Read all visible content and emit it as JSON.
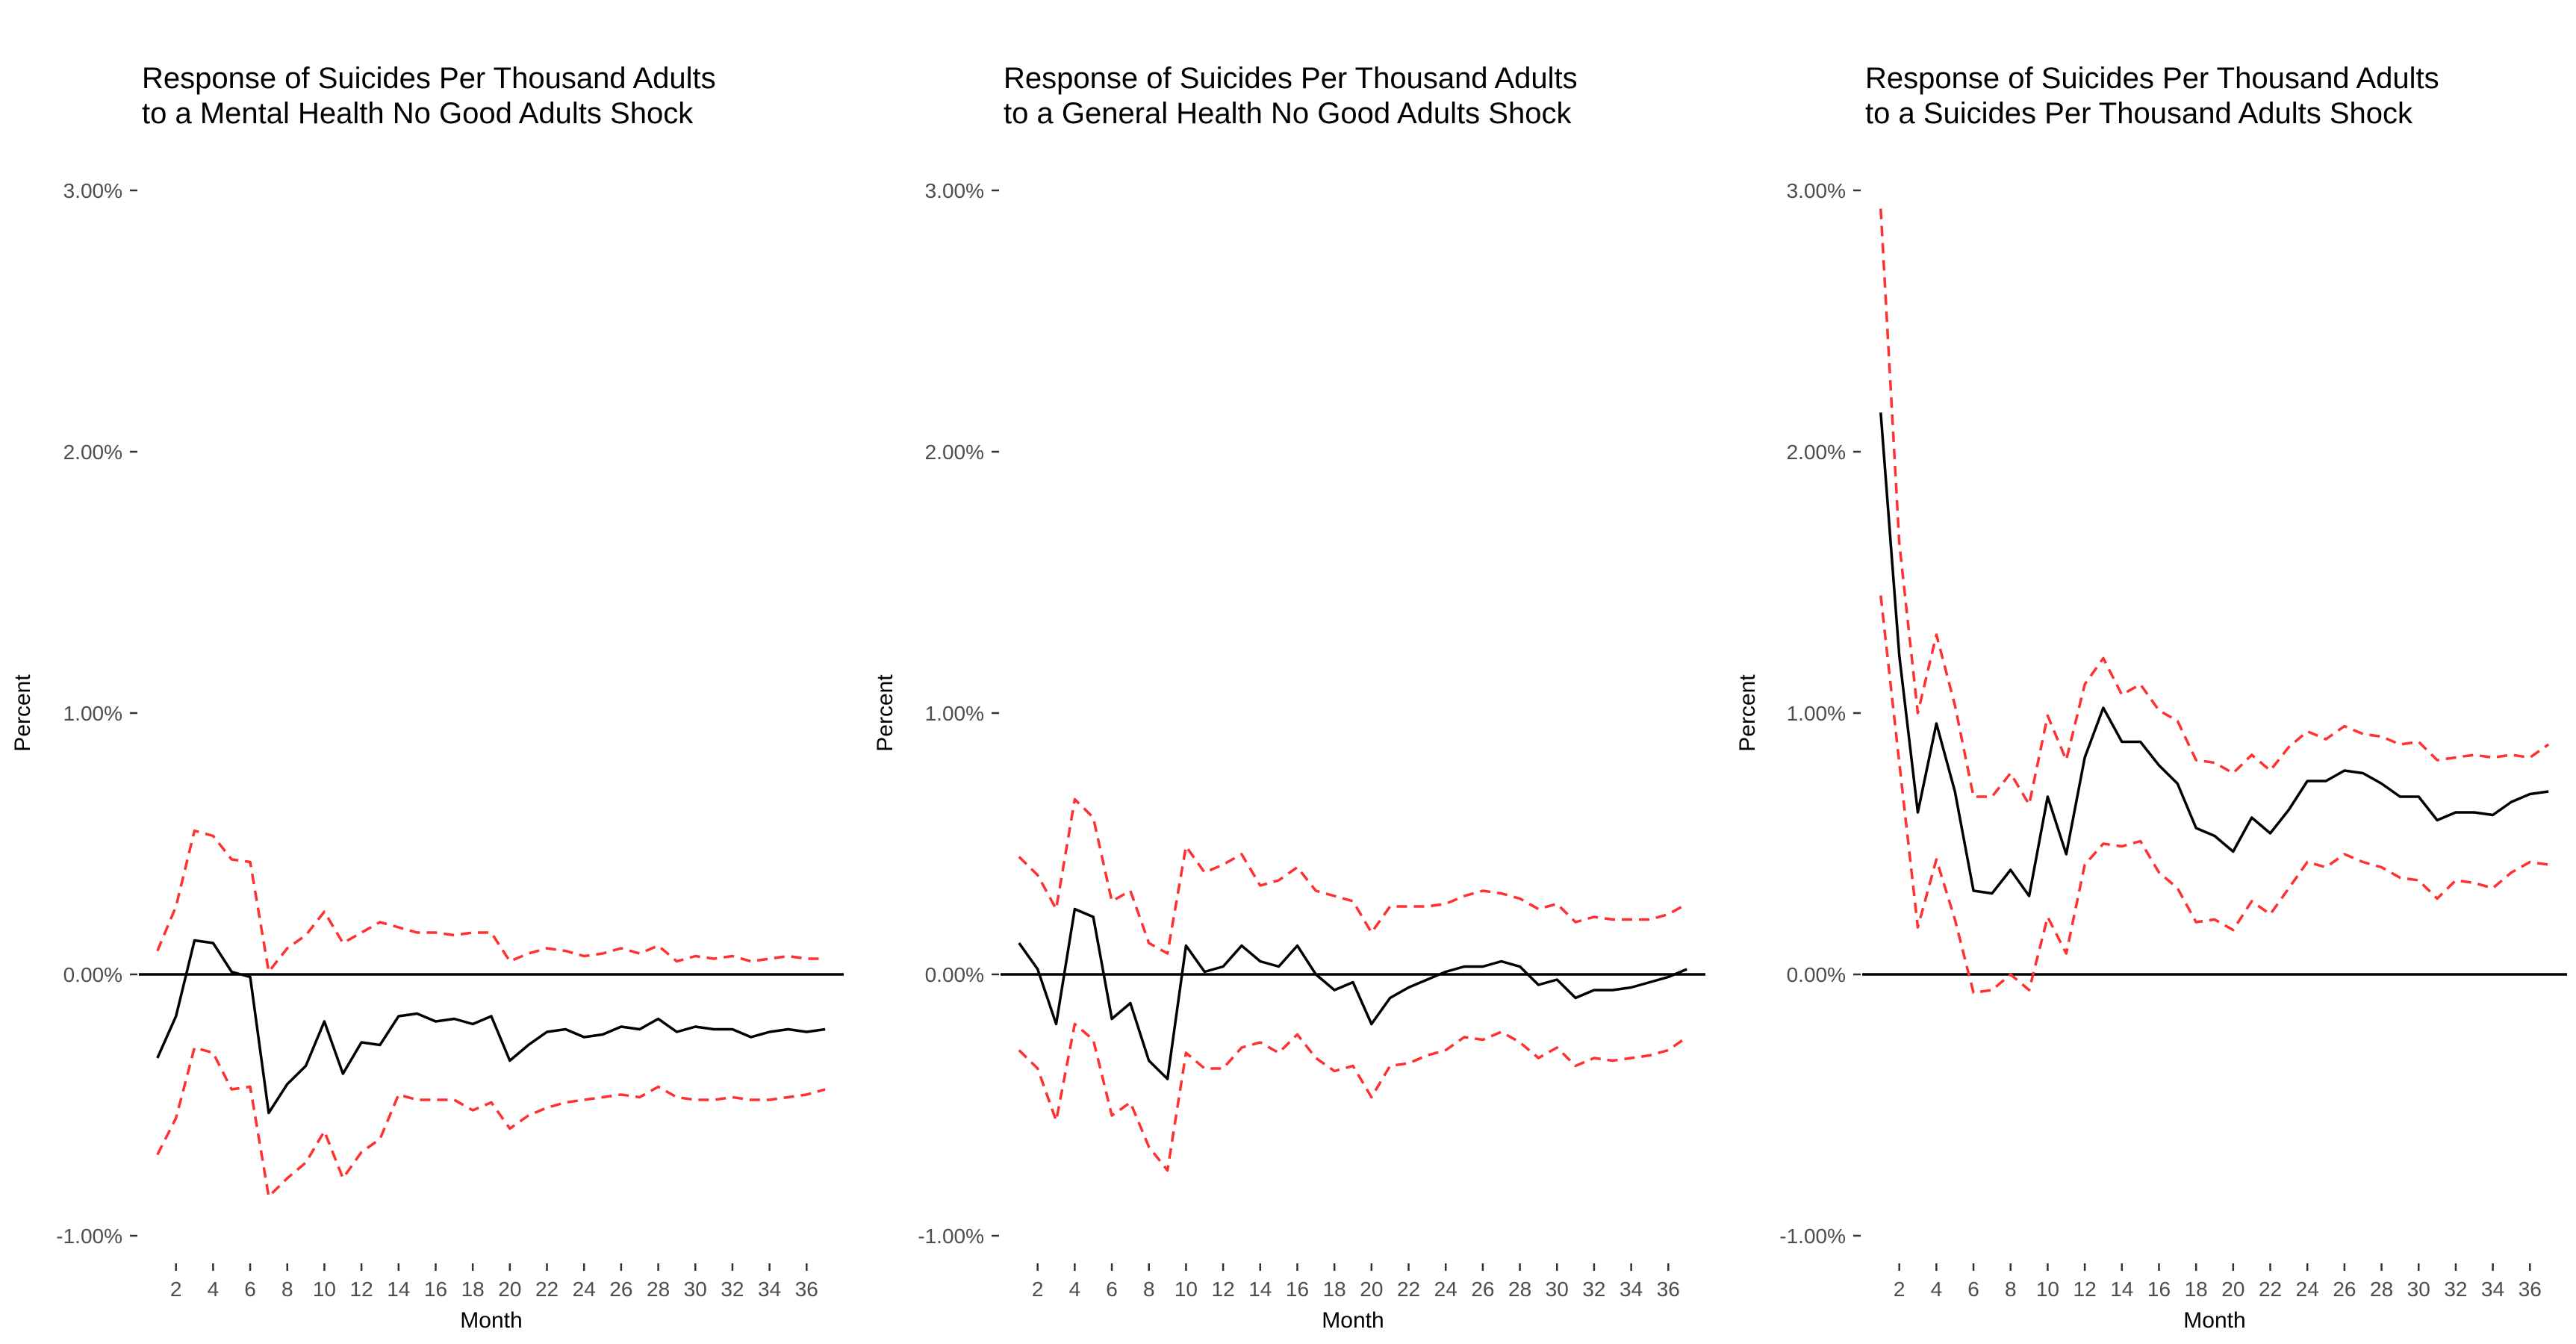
{
  "figure": {
    "accent_colors": {
      "estimate": "#000000",
      "bands": "#ff3030",
      "zero_line": "#000000",
      "tick_text": "#4d4d4d"
    }
  },
  "chart_data": [
    {
      "type": "line",
      "title": "Response of Suicides Per Thousand Adults\nto a Mental Health No Good Adults Shock",
      "xlabel": "Month",
      "ylabel": "Percent",
      "ylim": [
        -0.011,
        0.031
      ],
      "xlim": [
        0,
        38
      ],
      "yticks": [
        -0.01,
        0,
        0.01,
        0.02,
        0.03
      ],
      "ytick_labels": [
        "-1.00%",
        "0.00%",
        "1.00%",
        "2.00%",
        "3.00%"
      ],
      "xticks": [
        2,
        4,
        6,
        8,
        10,
        12,
        14,
        16,
        18,
        20,
        22,
        24,
        26,
        28,
        30,
        32,
        34,
        36
      ],
      "xtick_labels": [
        "2",
        "4",
        "6",
        "8",
        "10",
        "12",
        "14",
        "16",
        "18",
        "20",
        "22",
        "24",
        "26",
        "28",
        "30",
        "32",
        "34",
        "36"
      ],
      "grid": false,
      "x": [
        1,
        2,
        3,
        4,
        5,
        6,
        7,
        8,
        9,
        10,
        11,
        12,
        13,
        14,
        15,
        16,
        17,
        18,
        19,
        20,
        21,
        22,
        23,
        24,
        25,
        26,
        27,
        28,
        29,
        30,
        31,
        32,
        33,
        34,
        35,
        36,
        37
      ],
      "series": [
        {
          "role": "estimate",
          "style": "solid",
          "color": "#000000",
          "values": [
            -0.0032,
            -0.0016,
            0.0013,
            0.0012,
            0.0001,
            -0.0001,
            -0.0053,
            -0.0042,
            -0.0035,
            -0.0018,
            -0.0038,
            -0.0026,
            -0.0027,
            -0.0016,
            -0.0015,
            -0.0018,
            -0.0017,
            -0.0019,
            -0.0016,
            -0.0033,
            -0.0027,
            -0.0022,
            -0.0021,
            -0.0024,
            -0.0023,
            -0.002,
            -0.0021,
            -0.0017,
            -0.0022,
            -0.002,
            -0.0021,
            -0.0021,
            -0.0024,
            -0.0022,
            -0.0021,
            -0.0022,
            -0.0021
          ]
        },
        {
          "role": "upper_band",
          "style": "dashed",
          "color": "#ff3030",
          "values": [
            0.0009,
            0.0026,
            0.0055,
            0.0053,
            0.0044,
            0.0043,
            0.0001,
            0.001,
            0.0015,
            0.0024,
            0.0012,
            0.0016,
            0.002,
            0.0018,
            0.0016,
            0.0016,
            0.0015,
            0.0016,
            0.0016,
            0.0005,
            0.0008,
            0.001,
            0.0009,
            0.0007,
            0.0008,
            0.001,
            0.0008,
            0.0011,
            0.0005,
            0.0007,
            0.0006,
            0.0007,
            0.0005,
            0.0006,
            0.0007,
            0.0006,
            0.0006
          ]
        },
        {
          "role": "lower_band",
          "style": "dashed",
          "color": "#ff3030",
          "values": [
            -0.0069,
            -0.0055,
            -0.0028,
            -0.003,
            -0.0044,
            -0.0043,
            -0.0085,
            -0.0078,
            -0.0072,
            -0.006,
            -0.0078,
            -0.0068,
            -0.0063,
            -0.0046,
            -0.0048,
            -0.0048,
            -0.0048,
            -0.0052,
            -0.0049,
            -0.0059,
            -0.0054,
            -0.0051,
            -0.0049,
            -0.0048,
            -0.0047,
            -0.0046,
            -0.0047,
            -0.0043,
            -0.0047,
            -0.0048,
            -0.0048,
            -0.0047,
            -0.0048,
            -0.0048,
            -0.0047,
            -0.0046,
            -0.0044
          ]
        }
      ]
    },
    {
      "type": "line",
      "title": "Response of Suicides Per Thousand Adults\nto a General Health No Good Adults Shock",
      "xlabel": "Month",
      "ylabel": "Percent",
      "ylim": [
        -0.011,
        0.031
      ],
      "xlim": [
        0,
        38
      ],
      "yticks": [
        -0.01,
        0,
        0.01,
        0.02,
        0.03
      ],
      "ytick_labels": [
        "-1.00%",
        "0.00%",
        "1.00%",
        "2.00%",
        "3.00%"
      ],
      "xticks": [
        2,
        4,
        6,
        8,
        10,
        12,
        14,
        16,
        18,
        20,
        22,
        24,
        26,
        28,
        30,
        32,
        34,
        36
      ],
      "xtick_labels": [
        "2",
        "4",
        "6",
        "8",
        "10",
        "12",
        "14",
        "16",
        "18",
        "20",
        "22",
        "24",
        "26",
        "28",
        "30",
        "32",
        "34",
        "36"
      ],
      "grid": false,
      "x": [
        1,
        2,
        3,
        4,
        5,
        6,
        7,
        8,
        9,
        10,
        11,
        12,
        13,
        14,
        15,
        16,
        17,
        18,
        19,
        20,
        21,
        22,
        23,
        24,
        25,
        26,
        27,
        28,
        29,
        30,
        31,
        32,
        33,
        34,
        35,
        36,
        37
      ],
      "series": [
        {
          "role": "estimate",
          "style": "solid",
          "color": "#000000",
          "values": [
            0.0012,
            0.0002,
            -0.0019,
            0.0025,
            0.0022,
            -0.0017,
            -0.0011,
            -0.0033,
            -0.004,
            0.0011,
            0.0001,
            0.0003,
            0.0011,
            0.0005,
            0.0003,
            0.0011,
            0.0,
            -0.0006,
            -0.0003,
            -0.0019,
            -0.0009,
            -0.0005,
            -0.0002,
            0.0001,
            0.0003,
            0.0003,
            0.0005,
            0.0003,
            -0.0004,
            -0.0002,
            -0.0009,
            -0.0006,
            -0.0006,
            -0.0005,
            -0.0003,
            -0.0001,
            0.0002
          ]
        },
        {
          "role": "upper_band",
          "style": "dashed",
          "color": "#ff3030",
          "values": [
            0.0045,
            0.0038,
            0.0025,
            0.0067,
            0.006,
            0.0028,
            0.0032,
            0.0012,
            0.0008,
            0.0049,
            0.0039,
            0.0042,
            0.0046,
            0.0034,
            0.0036,
            0.0041,
            0.0032,
            0.003,
            0.0028,
            0.0016,
            0.0026,
            0.0026,
            0.0026,
            0.0027,
            0.003,
            0.0032,
            0.0031,
            0.0029,
            0.0025,
            0.0027,
            0.002,
            0.0022,
            0.0021,
            0.0021,
            0.0021,
            0.0023,
            0.0027
          ]
        },
        {
          "role": "lower_band",
          "style": "dashed",
          "color": "#ff3030",
          "values": [
            -0.0029,
            -0.0036,
            -0.0056,
            -0.0019,
            -0.0025,
            -0.0054,
            -0.0049,
            -0.0066,
            -0.0075,
            -0.003,
            -0.0036,
            -0.0036,
            -0.0028,
            -0.0026,
            -0.003,
            -0.0023,
            -0.0032,
            -0.0037,
            -0.0035,
            -0.0047,
            -0.0035,
            -0.0034,
            -0.0031,
            -0.0029,
            -0.0024,
            -0.0025,
            -0.0022,
            -0.0026,
            -0.0032,
            -0.0028,
            -0.0035,
            -0.0032,
            -0.0033,
            -0.0032,
            -0.0031,
            -0.0029,
            -0.0024
          ]
        }
      ]
    },
    {
      "type": "line",
      "title": "Response of Suicides Per Thousand Adults\nto a Suicides Per Thousand Adults Shock",
      "xlabel": "Month",
      "ylabel": "Percent",
      "ylim": [
        -0.011,
        0.031
      ],
      "xlim": [
        0,
        38
      ],
      "yticks": [
        -0.01,
        0,
        0.01,
        0.02,
        0.03
      ],
      "ytick_labels": [
        "-1.00%",
        "0.00%",
        "1.00%",
        "2.00%",
        "3.00%"
      ],
      "xticks": [
        2,
        4,
        6,
        8,
        10,
        12,
        14,
        16,
        18,
        20,
        22,
        24,
        26,
        28,
        30,
        32,
        34,
        36
      ],
      "xtick_labels": [
        "2",
        "4",
        "6",
        "8",
        "10",
        "12",
        "14",
        "16",
        "18",
        "20",
        "22",
        "24",
        "26",
        "28",
        "30",
        "32",
        "34",
        "36"
      ],
      "grid": false,
      "x": [
        1,
        2,
        3,
        4,
        5,
        6,
        7,
        8,
        9,
        10,
        11,
        12,
        13,
        14,
        15,
        16,
        17,
        18,
        19,
        20,
        21,
        22,
        23,
        24,
        25,
        26,
        27,
        28,
        29,
        30,
        31,
        32,
        33,
        34,
        35,
        36,
        37
      ],
      "series": [
        {
          "role": "estimate",
          "style": "solid",
          "color": "#000000",
          "values": [
            0.0215,
            0.0122,
            0.0062,
            0.0096,
            0.007,
            0.0032,
            0.0031,
            0.004,
            0.003,
            0.0068,
            0.0046,
            0.0083,
            0.0102,
            0.0089,
            0.0089,
            0.008,
            0.0073,
            0.0056,
            0.0053,
            0.0047,
            0.006,
            0.0054,
            0.0063,
            0.0074,
            0.0074,
            0.0078,
            0.0077,
            0.0073,
            0.0068,
            0.0068,
            0.0059,
            0.0062,
            0.0062,
            0.0061,
            0.0066,
            0.0069,
            0.007
          ]
        },
        {
          "role": "upper_band",
          "style": "dashed",
          "color": "#ff3030",
          "values": [
            0.0293,
            0.0165,
            0.01,
            0.013,
            0.0103,
            0.0068,
            0.0068,
            0.0077,
            0.0065,
            0.0099,
            0.0082,
            0.0111,
            0.0121,
            0.0107,
            0.0111,
            0.0101,
            0.0097,
            0.0082,
            0.0081,
            0.0077,
            0.0084,
            0.0078,
            0.0087,
            0.0093,
            0.009,
            0.0095,
            0.0092,
            0.0091,
            0.0088,
            0.0089,
            0.0082,
            0.0083,
            0.0084,
            0.0083,
            0.0084,
            0.0083,
            0.0088
          ]
        },
        {
          "role": "lower_band",
          "style": "dashed",
          "color": "#ff3030",
          "values": [
            0.0145,
            0.0081,
            0.0018,
            0.0044,
            0.0021,
            -0.0007,
            -0.0006,
            0.0,
            -0.0006,
            0.0022,
            0.0008,
            0.0042,
            0.005,
            0.0049,
            0.0051,
            0.0039,
            0.0033,
            0.002,
            0.0021,
            0.0017,
            0.0028,
            0.0023,
            0.0033,
            0.0043,
            0.0041,
            0.0046,
            0.0043,
            0.0041,
            0.0037,
            0.0036,
            0.0029,
            0.0036,
            0.0035,
            0.0033,
            0.0039,
            0.0043,
            0.0042
          ]
        }
      ]
    }
  ]
}
